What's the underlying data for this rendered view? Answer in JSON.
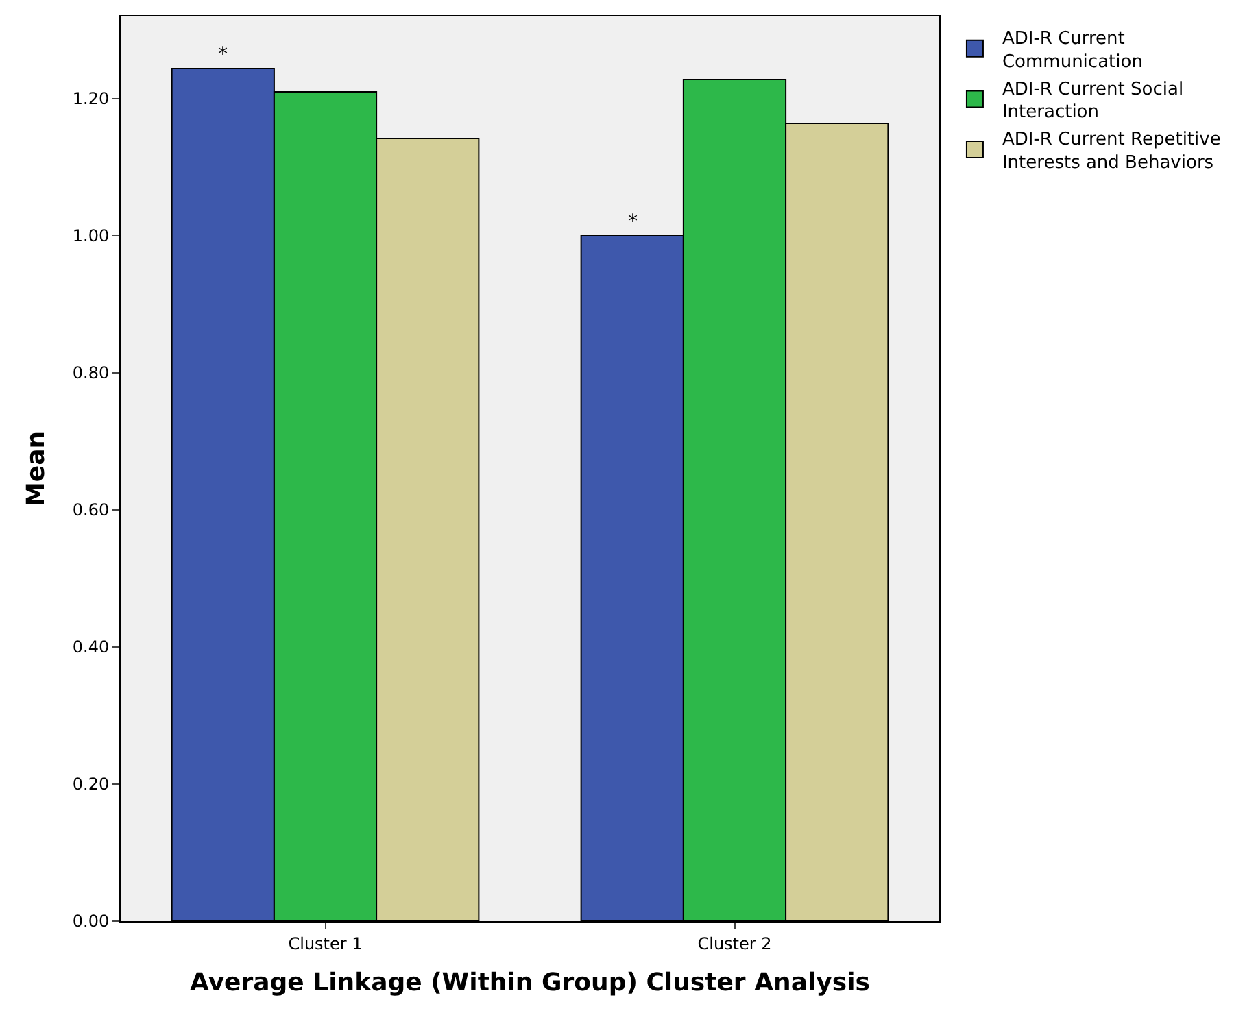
{
  "chart_data": {
    "type": "bar",
    "xlabel": "Average Linkage (Within Group) Cluster Analysis",
    "ylabel": "Mean",
    "categories": [
      "Cluster 1",
      "Cluster 2"
    ],
    "series": [
      {
        "name": "ADI-R Current Communication",
        "color": "#3e58ac",
        "values": [
          1.244,
          1.0
        ]
      },
      {
        "name": "ADI-R Current Social Interaction",
        "color": "#2db84a",
        "values": [
          1.21,
          1.228
        ]
      },
      {
        "name": "ADI-R Current Repetitive Interests and Behaviors",
        "color": "#d4cf98",
        "values": [
          1.142,
          1.164
        ]
      }
    ],
    "ylim": [
      0,
      1.32
    ],
    "yticks": [
      {
        "value": 0,
        "label": "0.00"
      },
      {
        "value": 0.2,
        "label": "0.20"
      },
      {
        "value": 0.4,
        "label": "0.40"
      },
      {
        "value": 0.6,
        "label": "0.60"
      },
      {
        "value": 0.8,
        "label": "0.80"
      },
      {
        "value": 1.0,
        "label": "1.00"
      },
      {
        "value": 1.2,
        "label": "1.20"
      }
    ],
    "annotations": [
      "*",
      "*"
    ],
    "grid": false,
    "legend": "top right"
  }
}
